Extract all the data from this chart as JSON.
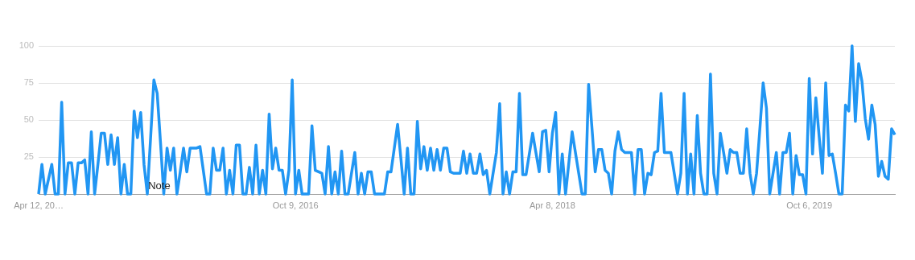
{
  "chart_data": {
    "type": "line",
    "categories": [
      "Apr 12, 20…",
      null,
      null,
      null,
      null,
      null,
      null,
      null,
      null,
      null,
      null,
      null,
      null,
      null,
      null,
      null,
      null,
      null,
      null,
      null,
      null,
      null,
      null,
      null,
      null,
      null,
      null,
      null,
      null,
      null,
      null,
      null,
      null,
      null,
      null,
      null,
      null,
      null,
      null,
      null,
      null,
      null,
      null,
      null,
      null,
      null,
      null,
      null,
      null,
      null,
      null,
      null,
      null,
      null,
      null,
      null,
      null,
      null,
      null,
      null,
      null,
      null,
      null,
      null,
      null,
      null,
      null,
      null,
      null,
      null,
      null,
      null,
      null,
      null,
      null,
      null,
      null,
      null,
      "Oct 9, 2016",
      null,
      null,
      null,
      null,
      null,
      null,
      null,
      null,
      null,
      null,
      null,
      null,
      null,
      null,
      null,
      null,
      null,
      null,
      null,
      null,
      null,
      null,
      null,
      null,
      null,
      null,
      null,
      null,
      null,
      null,
      null,
      null,
      null,
      null,
      null,
      null,
      null,
      null,
      null,
      null,
      null,
      null,
      null,
      null,
      null,
      null,
      null,
      null,
      null,
      null,
      null,
      null,
      null,
      null,
      null,
      null,
      null,
      null,
      null,
      null,
      null,
      null,
      null,
      null,
      null,
      null,
      null,
      null,
      null,
      null,
      null,
      null,
      null,
      null,
      null,
      null,
      null,
      "Apr 8, 2018",
      null,
      null,
      null,
      null,
      null,
      null,
      null,
      null,
      null,
      null,
      null,
      null,
      null,
      null,
      null,
      null,
      null,
      null,
      null,
      null,
      null,
      null,
      null,
      null,
      null,
      null,
      null,
      null,
      null,
      null,
      null,
      null,
      null,
      null,
      null,
      null,
      null,
      null,
      null,
      null,
      null,
      null,
      null,
      null,
      null,
      null,
      null,
      null,
      null,
      null,
      null,
      null,
      null,
      null,
      null,
      null,
      null,
      null,
      null,
      null,
      null,
      null,
      null,
      null,
      null,
      null,
      null,
      null,
      null,
      null,
      null,
      null,
      null,
      null,
      null,
      null,
      null,
      "Oct 6, 2019",
      null,
      null,
      null,
      null,
      null,
      null,
      null,
      null,
      null,
      null,
      null,
      null,
      null,
      null,
      null,
      null,
      null,
      null,
      null,
      null,
      null,
      null,
      null,
      null,
      null,
      null
    ],
    "series": [
      {
        "color": "#2196f3",
        "values": [
          0,
          20,
          0,
          10,
          20,
          0,
          0,
          62,
          0,
          21,
          21,
          0,
          21,
          21,
          23,
          0,
          42,
          0,
          20,
          41,
          41,
          20,
          40,
          20,
          38,
          0,
          20,
          0,
          0,
          56,
          38,
          55,
          20,
          0,
          38,
          77,
          68,
          35,
          0,
          31,
          16,
          31,
          0,
          15,
          31,
          15,
          31,
          31,
          31,
          32,
          16,
          0,
          0,
          31,
          16,
          16,
          31,
          0,
          16,
          0,
          33,
          33,
          0,
          0,
          18,
          0,
          33,
          0,
          16,
          0,
          54,
          17,
          31,
          16,
          16,
          0,
          16,
          77,
          0,
          16,
          0,
          0,
          0,
          46,
          16,
          15,
          14,
          0,
          32,
          0,
          15,
          0,
          29,
          0,
          0,
          14,
          28,
          0,
          14,
          0,
          15,
          15,
          0,
          0,
          0,
          0,
          15,
          15,
          31,
          47,
          24,
          0,
          31,
          0,
          0,
          49,
          17,
          32,
          16,
          31,
          16,
          30,
          16,
          31,
          31,
          15,
          14,
          14,
          14,
          29,
          14,
          27,
          14,
          14,
          27,
          13,
          16,
          0,
          14,
          28,
          61,
          0,
          15,
          0,
          15,
          15,
          68,
          13,
          13,
          27,
          41,
          28,
          15,
          42,
          43,
          15,
          41,
          55,
          0,
          27,
          0,
          21,
          42,
          28,
          14,
          0,
          0,
          74,
          45,
          15,
          30,
          30,
          16,
          14,
          0,
          29,
          42,
          30,
          28,
          28,
          28,
          0,
          30,
          30,
          0,
          14,
          13,
          28,
          29,
          68,
          28,
          28,
          28,
          14,
          0,
          14,
          68,
          0,
          27,
          0,
          53,
          14,
          0,
          0,
          81,
          14,
          0,
          41,
          28,
          14,
          30,
          28,
          28,
          14,
          14,
          44,
          14,
          0,
          14,
          44,
          75,
          58,
          0,
          14,
          28,
          0,
          28,
          28,
          41,
          0,
          26,
          13,
          13,
          0,
          78,
          27,
          65,
          39,
          14,
          75,
          26,
          27,
          14,
          0,
          0,
          60,
          56,
          100,
          49,
          88,
          76,
          51,
          37,
          60,
          47,
          12,
          22,
          12,
          10,
          44,
          40
        ]
      }
    ],
    "ylim": [
      0,
      100
    ],
    "yticks": [
      25,
      50,
      75,
      100
    ],
    "grid": "y",
    "annotations": [
      "Note"
    ]
  }
}
